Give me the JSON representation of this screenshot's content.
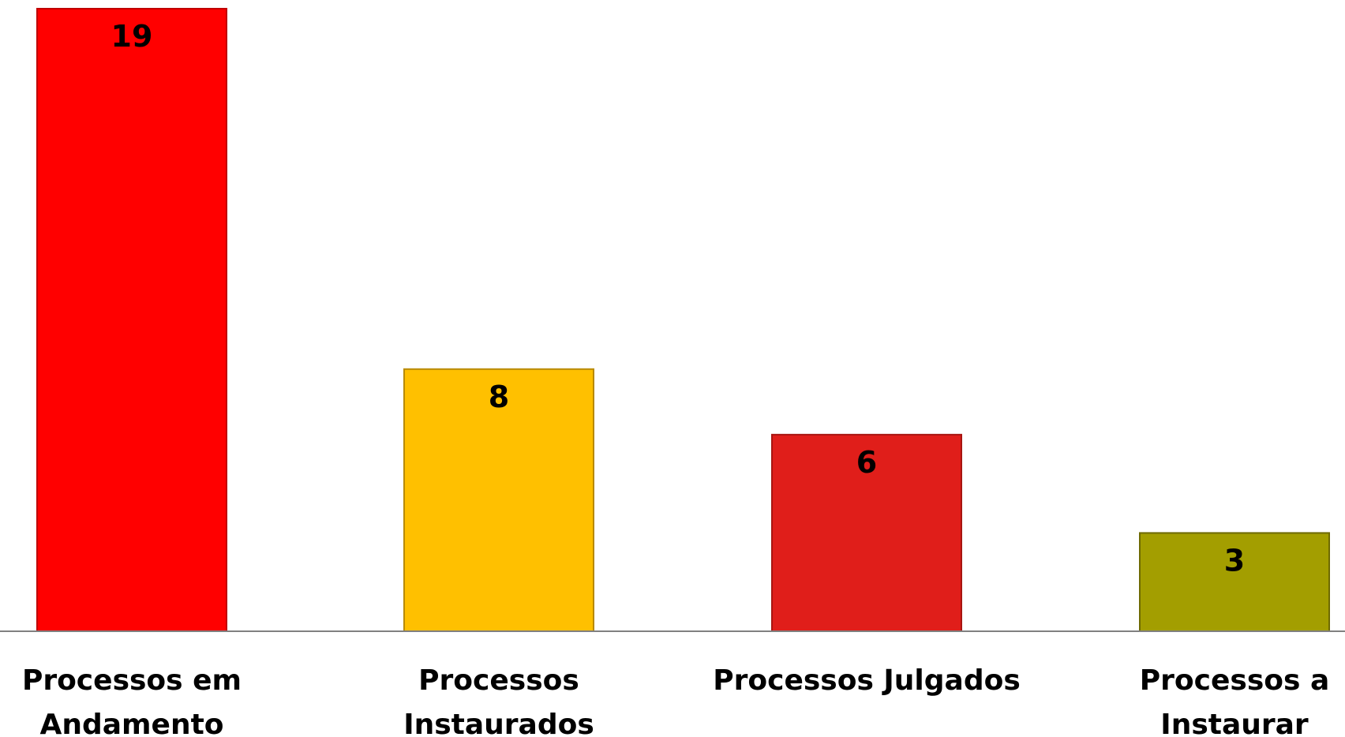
{
  "chart_data": {
    "type": "bar",
    "title": "",
    "xlabel": "",
    "ylabel": "",
    "ylim": [
      0,
      19
    ],
    "grid": false,
    "legend": "none",
    "categories": [
      [
        "Processos em",
        "Andamento"
      ],
      [
        "Processos",
        "Instaurados"
      ],
      [
        "Processos Julgados"
      ],
      [
        "Processos a",
        "Instaurar"
      ]
    ],
    "values": [
      19,
      8,
      6,
      3
    ],
    "value_labels": [
      "19",
      "8",
      "6",
      "3"
    ],
    "colors": [
      "#ff0000",
      "#ffc000",
      "#e01e1a",
      "#a39e00"
    ],
    "edge_colors": [
      "#c00000",
      "#b88a00",
      "#a81511",
      "#6e6a00"
    ],
    "axis_color": "#808080"
  }
}
